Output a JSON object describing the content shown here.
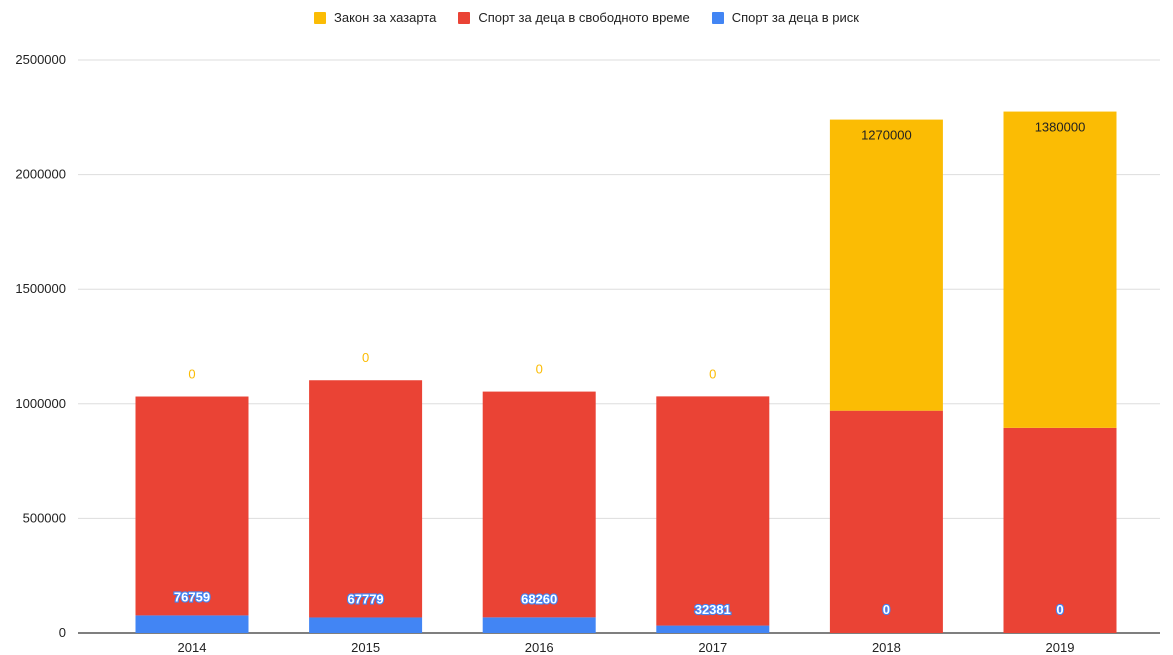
{
  "chart_data": {
    "type": "bar",
    "stacked": true,
    "categories": [
      "2014",
      "2015",
      "2016",
      "2017",
      "2018",
      "2019"
    ],
    "series": [
      {
        "name": "Спорт за деца в риск",
        "color": "#4285f4",
        "values": [
          76759,
          67779,
          68260,
          32381,
          0,
          0
        ],
        "labels": [
          "76759",
          "67779",
          "68260",
          "32381",
          "0",
          "0"
        ]
      },
      {
        "name": "Спорт за деца в свободното време",
        "color": "#ea4335",
        "values": [
          955000,
          1035000,
          985000,
          1000000,
          970000,
          895000
        ],
        "labels": null
      },
      {
        "name": "Закон за хазарта",
        "color": "#fbbc04",
        "values": [
          0,
          0,
          0,
          0,
          1270000,
          1380000
        ],
        "labels": [
          "0",
          "0",
          "0",
          "0",
          "1270000",
          "1380000"
        ]
      }
    ],
    "legend_order": [
      2,
      1,
      0
    ],
    "legend_position": "top-center",
    "ylim": [
      0,
      2500000
    ],
    "yticks": [
      "0",
      "500000",
      "1000000",
      "1500000",
      "2000000",
      "2500000"
    ],
    "grid": true,
    "title": "",
    "xlabel": "",
    "ylabel": ""
  }
}
